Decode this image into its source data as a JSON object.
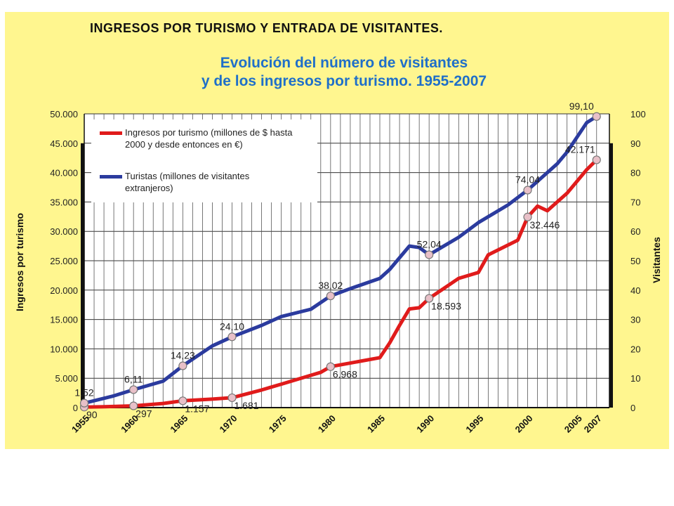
{
  "header": "INGRESOS POR TURISMO Y ENTRADA DE VISITANTES.",
  "title_line1": "Evolución del número de visitantes",
  "title_line2": "y de los ingresos por turismo. 1955-2007",
  "colors": {
    "background": "#fff68f",
    "ingresos": "#e01b1b",
    "turistas": "#2b3b9e",
    "title": "#1f6fc9"
  },
  "chart_data": {
    "type": "line",
    "x_tick_labels": [
      "1955",
      "1960",
      "1965",
      "1970",
      "1975",
      "1980",
      "1985",
      "1990",
      "1995",
      "2000",
      "2005",
      "2007"
    ],
    "ylabel_left": "Ingresos por turismo",
    "ylabel_right": "Visitantes",
    "ylim_left": [
      0,
      50000
    ],
    "ylim_right": [
      0,
      100
    ],
    "left_tick_labels": [
      "0",
      "5.000",
      "10.000",
      "15.000",
      "20.000",
      "25.000",
      "30.000",
      "35.000",
      "40.000",
      "45.000",
      "50.000"
    ],
    "right_tick_labels": [
      "0",
      "10",
      "20",
      "30",
      "40",
      "50",
      "60",
      "70",
      "80",
      "90",
      "100"
    ],
    "grid": true,
    "legend_position": "top-left",
    "series": [
      {
        "name": "Ingresos por turismo (millones de $ hasta 2000 y desde entonces en €)",
        "axis": "left",
        "x": [
          1955,
          1957,
          1960,
          1963,
          1965,
          1968,
          1970,
          1973,
          1975,
          1978,
          1979,
          1980,
          1985,
          1986,
          1987,
          1988,
          1989,
          1990,
          1993,
          1995,
          1996,
          1999,
          2000,
          2001,
          2002,
          2003,
          2004,
          2005,
          2006,
          2007
        ],
        "y": [
          90,
          150,
          297,
          700,
          1157,
          1450,
          1681,
          3000,
          4000,
          5500,
          6000,
          6968,
          8500,
          11000,
          14000,
          16800,
          17000,
          18593,
          22000,
          23000,
          26000,
          28500,
          32446,
          34300,
          33500,
          35000,
          36500,
          38500,
          40500,
          42171
        ],
        "labels": [
          {
            "x": 1955,
            "y": 90,
            "text": "90"
          },
          {
            "x": 1960,
            "y": 297,
            "text": "297"
          },
          {
            "x": 1965,
            "y": 1157,
            "text": "1.157"
          },
          {
            "x": 1970,
            "y": 1681,
            "text": "1.681"
          },
          {
            "x": 1980,
            "y": 6968,
            "text": "6.968"
          },
          {
            "x": 1990,
            "y": 18593,
            "text": "18.593"
          },
          {
            "x": 2000,
            "y": 32446,
            "text": "32.446"
          },
          {
            "x": 2007,
            "y": 42171,
            "text": "42.171"
          }
        ]
      },
      {
        "name": "Turistas (millones de visitantes extranjeros)",
        "axis": "right",
        "x": [
          1955,
          1958,
          1960,
          1963,
          1965,
          1968,
          1970,
          1973,
          1975,
          1978,
          1980,
          1982,
          1985,
          1986,
          1988,
          1989,
          1990,
          1993,
          1995,
          1998,
          2000,
          2003,
          2004,
          2005,
          2006,
          2007
        ],
        "y": [
          1.52,
          4,
          6.11,
          9,
          14.23,
          21,
          24.1,
          28,
          31,
          33.5,
          38.02,
          40.5,
          44,
          47,
          55,
          54.5,
          52.04,
          58,
          63,
          69,
          74.04,
          83,
          87,
          92,
          97,
          99.1
        ],
        "labels": [
          {
            "x": 1955,
            "y": 1.52,
            "text": "1,52"
          },
          {
            "x": 1960,
            "y": 6.11,
            "text": "6,11"
          },
          {
            "x": 1965,
            "y": 14.23,
            "text": "14,23"
          },
          {
            "x": 1970,
            "y": 24.1,
            "text": "24,10"
          },
          {
            "x": 1980,
            "y": 38.02,
            "text": "38,02"
          },
          {
            "x": 1990,
            "y": 52.04,
            "text": "52,04"
          },
          {
            "x": 2000,
            "y": 74.04,
            "text": "74,04"
          },
          {
            "x": 2007,
            "y": 99.1,
            "text": "99,10"
          }
        ]
      }
    ]
  }
}
